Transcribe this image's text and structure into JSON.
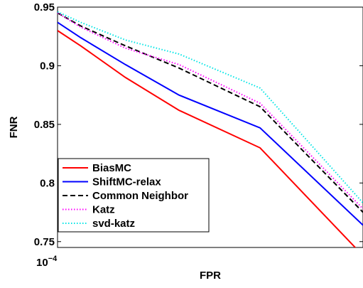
{
  "chart_data": {
    "type": "line",
    "xlabel": "FPR",
    "ylabel": "FNR",
    "xscale": "log",
    "x_tick_labels": [
      {
        "base": "10",
        "exponent": "−4"
      }
    ],
    "xlim": [
      0.0001,
      0.00013
    ],
    "ylim": [
      0.745,
      0.95
    ],
    "yticks": [
      0.75,
      0.8,
      0.85,
      0.9,
      0.95
    ],
    "ytick_labels": [
      "0.75",
      "0.8",
      "0.85",
      "0.9",
      "0.95"
    ],
    "grid": false,
    "legend": "bottom-left",
    "x": [
      0.0001,
      0.000102,
      0.000106,
      0.000111,
      0.000119,
      0.00013
    ],
    "series": [
      {
        "name": "BiasMC",
        "color": "#ff0000",
        "dash": "solid",
        "values": [
          0.93,
          0.917,
          0.89,
          0.862,
          0.83,
          0.738
        ]
      },
      {
        "name": "ShiftMC-relax",
        "color": "#0000ff",
        "dash": "solid",
        "values": [
          0.937,
          0.924,
          0.901,
          0.875,
          0.847,
          0.764
        ]
      },
      {
        "name": "Common Neighbor",
        "color": "#000000",
        "dash": "dashed",
        "values": [
          0.945,
          0.934,
          0.917,
          0.898,
          0.865,
          0.775
        ]
      },
      {
        "name": "Katz",
        "color": "#ff00ff",
        "dash": "dotted",
        "values": [
          0.945,
          0.933,
          0.915,
          0.901,
          0.868,
          0.778
        ]
      },
      {
        "name": "svd-katz",
        "color": "#00e5e5",
        "dash": "dotted",
        "values": [
          0.946,
          0.937,
          0.922,
          0.91,
          0.881,
          0.783
        ]
      }
    ]
  }
}
